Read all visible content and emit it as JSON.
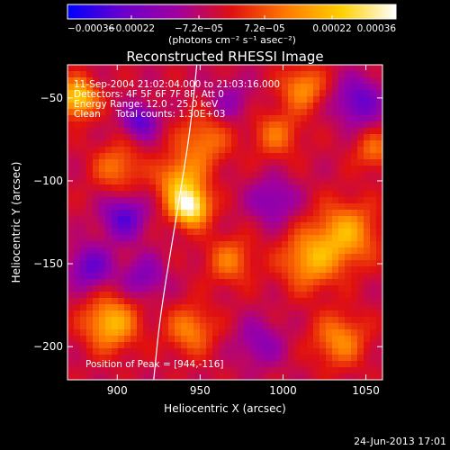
{
  "chart_data": {
    "type": "heatmap",
    "title": "Reconstructed RHESSI Image",
    "xlabel": "Heliocentric X (arcsec)",
    "ylabel": "Heliocentric Y (arcsec)",
    "xlim": [
      870,
      1060
    ],
    "ylim": [
      -220,
      -30
    ],
    "x_ticks": [
      {
        "value": 900,
        "label": "900"
      },
      {
        "value": 950,
        "label": "950"
      },
      {
        "value": 1000,
        "label": "1000"
      },
      {
        "value": 1050,
        "label": "1050"
      }
    ],
    "y_ticks": [
      {
        "value": -50,
        "label": "−50"
      },
      {
        "value": -100,
        "label": "−100"
      },
      {
        "value": -150,
        "label": "−150"
      },
      {
        "value": -200,
        "label": "−200"
      }
    ],
    "colorbar": {
      "range": [
        -0.00036,
        0.00036
      ],
      "ticks": [
        {
          "value": -0.00036,
          "label": "−0.00036"
        },
        {
          "value": -0.00022,
          "label": "−0.00022"
        },
        {
          "value": -7.2e-05,
          "label": "−7.2e−05"
        },
        {
          "value": 7.2e-05,
          "label": "7.2e−05"
        },
        {
          "value": 0.00022,
          "label": "0.00022"
        },
        {
          "value": 0.00036,
          "label": "0.00036"
        }
      ],
      "units_label": "(photons cm⁻² s⁻¹ asec⁻²)",
      "colormap": [
        "#0000ff",
        "#6a00cc",
        "#a000a0",
        "#e01010",
        "#ff7a00",
        "#ffd000",
        "#ffffff"
      ]
    },
    "info_lines": [
      "11-Sep-2004 21:02:04.000 to 21:03:16.000",
      "Detectors: 4F 5F 6F 7F 8F, Att 0",
      "Energy Range: 12.0 - 25.0 keV",
      "Clean     Total counts: 1.30E+03"
    ],
    "peak_label": "Position of Peak = [944,-116]",
    "peak": {
      "x": 944,
      "y": -116
    },
    "sources": [
      {
        "x": 944,
        "y": -116,
        "amp": 0.00036,
        "sigma": 8
      },
      {
        "x": 938,
        "y": -100,
        "amp": 0.00022,
        "sigma": 10
      },
      {
        "x": 952,
        "y": -76,
        "amp": 0.00016,
        "sigma": 11
      },
      {
        "x": 876,
        "y": -50,
        "amp": 0.0003,
        "sigma": 8
      },
      {
        "x": 900,
        "y": -92,
        "amp": 0.00015,
        "sigma": 10
      },
      {
        "x": 1012,
        "y": -44,
        "amp": 0.00019,
        "sigma": 9
      },
      {
        "x": 996,
        "y": -72,
        "amp": 0.00014,
        "sigma": 10
      },
      {
        "x": 1038,
        "y": -132,
        "amp": 0.00022,
        "sigma": 13
      },
      {
        "x": 1016,
        "y": -148,
        "amp": 0.00021,
        "sigma": 12
      },
      {
        "x": 968,
        "y": -148,
        "amp": 0.00015,
        "sigma": 10
      },
      {
        "x": 896,
        "y": -186,
        "amp": 0.00025,
        "sigma": 11
      },
      {
        "x": 944,
        "y": -190,
        "amp": 0.00017,
        "sigma": 10
      },
      {
        "x": 1034,
        "y": -196,
        "amp": 0.00018,
        "sigma": 11
      },
      {
        "x": 1055,
        "y": -82,
        "amp": 0.00014,
        "sigma": 8
      },
      {
        "x": 904,
        "y": -122,
        "amp": -0.00022,
        "sigma": 9
      },
      {
        "x": 914,
        "y": -64,
        "amp": -0.00022,
        "sigma": 7
      },
      {
        "x": 884,
        "y": -152,
        "amp": -0.0002,
        "sigma": 9
      },
      {
        "x": 1046,
        "y": -52,
        "amp": -0.0002,
        "sigma": 10
      },
      {
        "x": 994,
        "y": -112,
        "amp": -0.00014,
        "sigma": 10
      },
      {
        "x": 916,
        "y": -158,
        "amp": -0.00014,
        "sigma": 9
      },
      {
        "x": 986,
        "y": -198,
        "amp": -0.00012,
        "sigma": 10
      },
      {
        "x": 968,
        "y": -52,
        "amp": -0.0001,
        "sigma": 9
      }
    ],
    "limb_arc": [
      [
        948,
        -30
      ],
      [
        944,
        -70
      ],
      [
        936,
        -120
      ],
      [
        926,
        -180
      ],
      [
        922,
        -220
      ]
    ]
  },
  "footer": {
    "timestamp": "24-Jun-2013 17:01"
  }
}
